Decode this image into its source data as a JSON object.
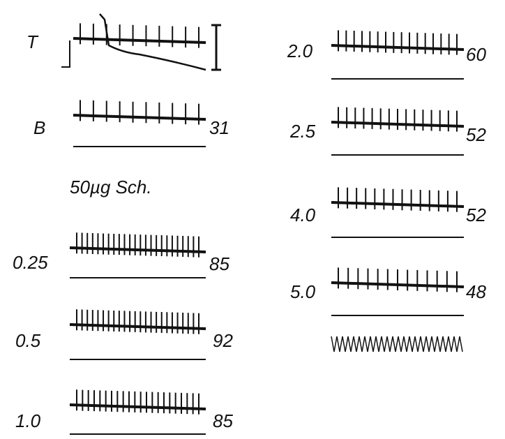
{
  "heading": "50µg Sch.",
  "left_traces": [
    {
      "label": "T"
    },
    {
      "label": "B",
      "value": "31"
    },
    {
      "label": "0.25",
      "value": "85"
    },
    {
      "label": "0.5",
      "value": "92"
    },
    {
      "label": "1.0",
      "value": "85"
    }
  ],
  "right_traces": [
    {
      "label": "2.0",
      "value": "60"
    },
    {
      "label": "2.5",
      "value": "52"
    },
    {
      "label": "4.0",
      "value": "52"
    },
    {
      "label": "5.0",
      "value": "48"
    }
  ]
}
